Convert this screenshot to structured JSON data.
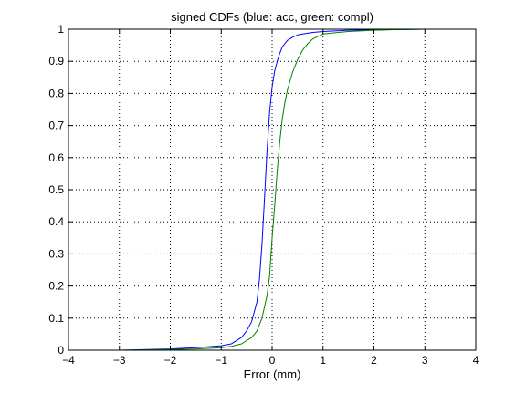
{
  "chart_data": {
    "type": "line",
    "title": "signed CDFs (blue: acc, green: compl)",
    "xlabel": "Error (mm)",
    "ylabel": "",
    "xlim": [
      -4,
      4
    ],
    "ylim": [
      0,
      1
    ],
    "xticks": [
      -4,
      -3,
      -2,
      -1,
      0,
      1,
      2,
      3,
      4
    ],
    "xtick_labels": [
      "−4",
      "−3",
      "−2",
      "−1",
      "0",
      "1",
      "2",
      "3",
      "4"
    ],
    "yticks": [
      0,
      0.1,
      0.2,
      0.3,
      0.4,
      0.5,
      0.6,
      0.7,
      0.8,
      0.9,
      1
    ],
    "ytick_labels": [
      "0",
      "0.1",
      "0.2",
      "0.3",
      "0.4",
      "0.5",
      "0.6",
      "0.7",
      "0.8",
      "0.9",
      "1"
    ],
    "grid": true,
    "series": [
      {
        "color": "#0000ff",
        "x": [
          -3.0,
          -2.0,
          -1.5,
          -1.0,
          -0.8,
          -0.6,
          -0.5,
          -0.4,
          -0.3,
          -0.25,
          -0.2,
          -0.15,
          -0.1,
          -0.05,
          0.0,
          0.05,
          0.1,
          0.15,
          0.2,
          0.3,
          0.4,
          0.5,
          0.6,
          0.8,
          1.0,
          1.5,
          2.0,
          2.5,
          3.0
        ],
        "y": [
          0.0,
          0.004,
          0.008,
          0.014,
          0.02,
          0.04,
          0.06,
          0.09,
          0.15,
          0.22,
          0.33,
          0.47,
          0.62,
          0.74,
          0.82,
          0.87,
          0.9,
          0.925,
          0.945,
          0.965,
          0.975,
          0.982,
          0.985,
          0.99,
          0.993,
          0.997,
          0.998,
          0.999,
          1.0
        ]
      },
      {
        "color": "#008000",
        "x": [
          -3.0,
          -2.0,
          -1.5,
          -1.0,
          -0.8,
          -0.6,
          -0.4,
          -0.3,
          -0.2,
          -0.1,
          -0.05,
          0.0,
          0.05,
          0.1,
          0.15,
          0.2,
          0.25,
          0.3,
          0.4,
          0.5,
          0.6,
          0.7,
          0.8,
          1.0,
          1.3,
          1.5,
          2.0,
          2.5,
          3.0
        ],
        "y": [
          0.0,
          0.002,
          0.004,
          0.008,
          0.012,
          0.02,
          0.04,
          0.06,
          0.1,
          0.17,
          0.23,
          0.35,
          0.45,
          0.56,
          0.65,
          0.72,
          0.77,
          0.81,
          0.865,
          0.905,
          0.935,
          0.955,
          0.97,
          0.985,
          0.99,
          0.993,
          0.997,
          0.999,
          1.0
        ]
      }
    ]
  }
}
